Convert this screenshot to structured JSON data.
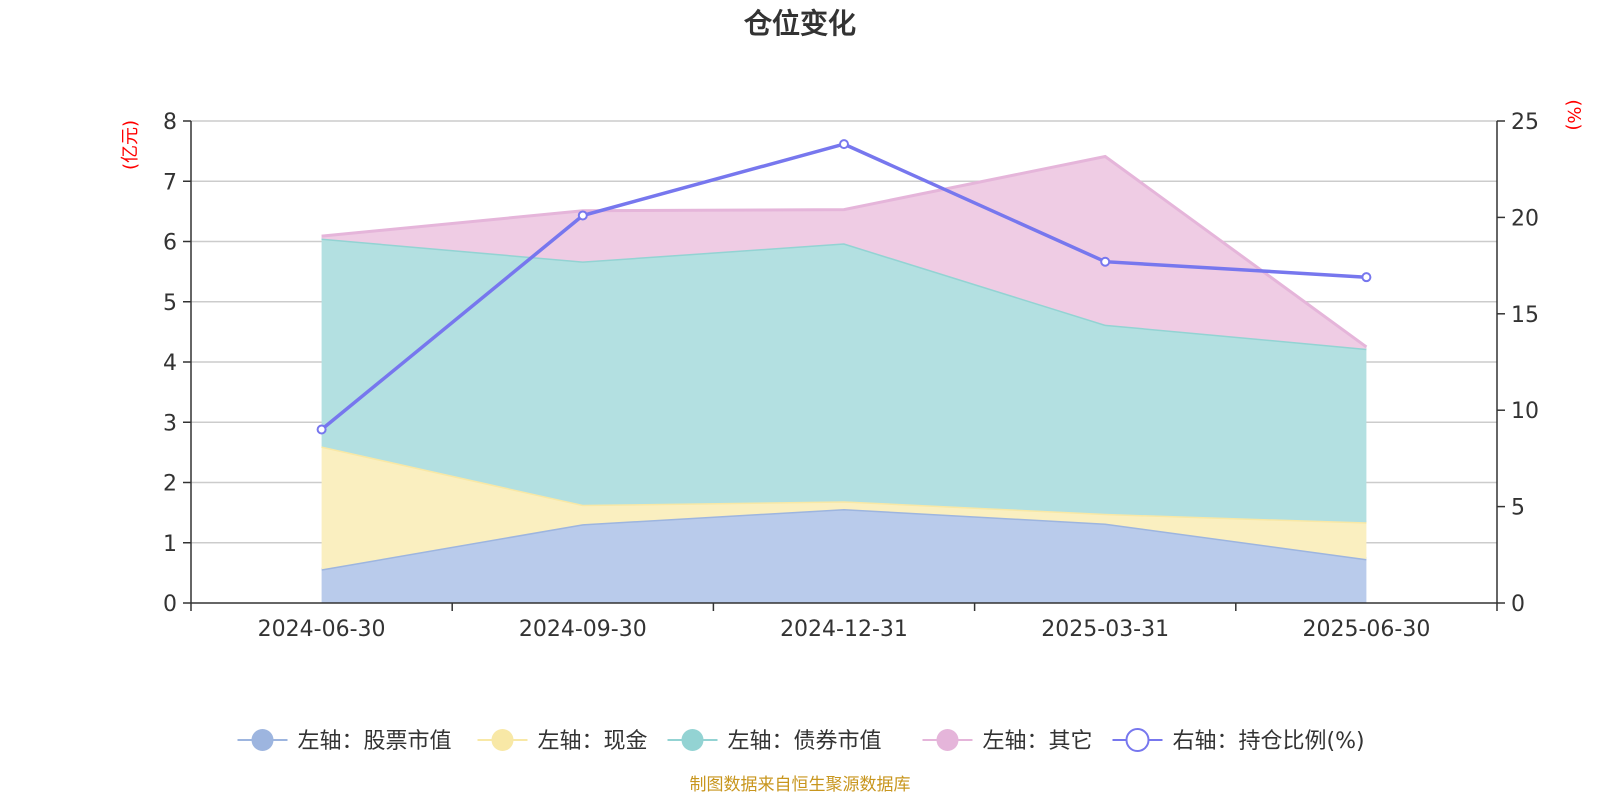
{
  "chart_data": {
    "type": "area",
    "title": "仓位变化",
    "left_unit": "(亿元)",
    "right_unit": "(%)",
    "categories": [
      "2024-06-30",
      "2024-09-30",
      "2024-12-31",
      "2025-03-31",
      "2025-06-30"
    ],
    "left_axis": {
      "min": 0,
      "max": 8,
      "ticks": [
        "0",
        "1",
        "2",
        "3",
        "4",
        "5",
        "6",
        "7",
        "8"
      ]
    },
    "right_axis": {
      "min": 0,
      "max": 25,
      "ticks": [
        "0",
        "5",
        "10",
        "15",
        "20",
        "25"
      ]
    },
    "stacked": true,
    "grid": true,
    "series": [
      {
        "name": "左轴：股票市值",
        "axis": "left",
        "type": "area",
        "color": "#9db5df",
        "fill": "#b9cbeb",
        "values": [
          0.56,
          1.31,
          1.56,
          1.32,
          0.73
        ]
      },
      {
        "name": "左轴：现金",
        "axis": "left",
        "type": "area",
        "color": "#f8e8a6",
        "fill": "#faefc0",
        "values": [
          2.04,
          0.32,
          0.13,
          0.16,
          0.61
        ]
      },
      {
        "name": "左轴：债券市值",
        "axis": "left",
        "type": "area",
        "color": "#93d3d3",
        "fill": "#b3e0e1",
        "values": [
          3.45,
          4.04,
          4.28,
          3.14,
          2.88
        ]
      },
      {
        "name": "左轴：其它",
        "axis": "left",
        "type": "area",
        "color": "#e5b5da",
        "fill": "#efcce4",
        "values": [
          0.04,
          0.84,
          0.56,
          2.79,
          0.03
        ]
      },
      {
        "name": "右轴：持仓比例(%)",
        "axis": "right",
        "type": "line",
        "color": "#7777ee",
        "values": [
          9.0,
          20.1,
          23.8,
          17.7,
          16.9
        ]
      }
    ],
    "legend_position": "bottom-center"
  },
  "footer": "制图数据来自恒生聚源数据库"
}
